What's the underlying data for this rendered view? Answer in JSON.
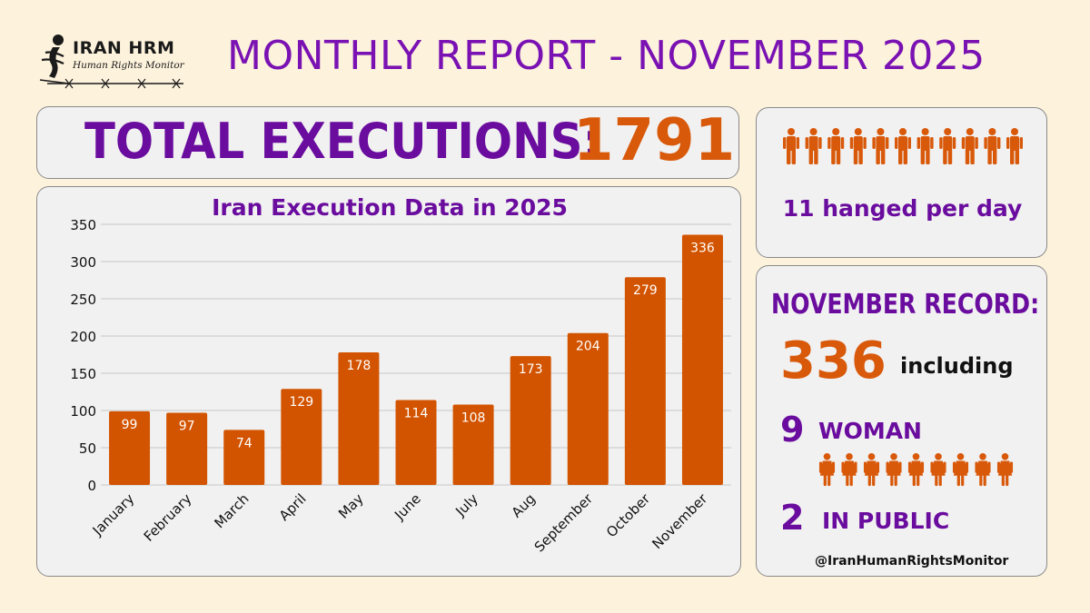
{
  "logo": {
    "brand": "IRAN HRM",
    "tagline": "Human Rights Monitor"
  },
  "report_title": "MONTHLY REPORT - NOVEMBER 2025",
  "total": {
    "label": "TOTAL EXECUTIONS:",
    "value": "1791"
  },
  "per_day": {
    "text": "11 hanged per day",
    "icon_count": 11
  },
  "record": {
    "title": "NOVEMBER RECORD:",
    "value": "336",
    "including": "including",
    "women_count": "9",
    "women_label": "WOMAN",
    "women_icon_count": 9,
    "public_count": "2",
    "public_label": "IN PUBLIC"
  },
  "handle": "@IranHumanRightsMonitor",
  "colors": {
    "background": "#fdf2dc",
    "purple": "#6a0c9e",
    "orange": "#d9590a",
    "bar": "#d35400",
    "panel": "#f1f1f1"
  },
  "chart_data": {
    "type": "bar",
    "title": "Iran Execution Data in 2025",
    "categories": [
      "January",
      "February",
      "March",
      "April",
      "May",
      "June",
      "July",
      "Aug",
      "September",
      "October",
      "November"
    ],
    "values": [
      99,
      97,
      74,
      129,
      178,
      114,
      108,
      173,
      204,
      279,
      336
    ],
    "ylim": [
      0,
      350
    ],
    "yticks": [
      0,
      50,
      100,
      150,
      200,
      250,
      300,
      350
    ],
    "grid": true,
    "data_labels": true
  }
}
